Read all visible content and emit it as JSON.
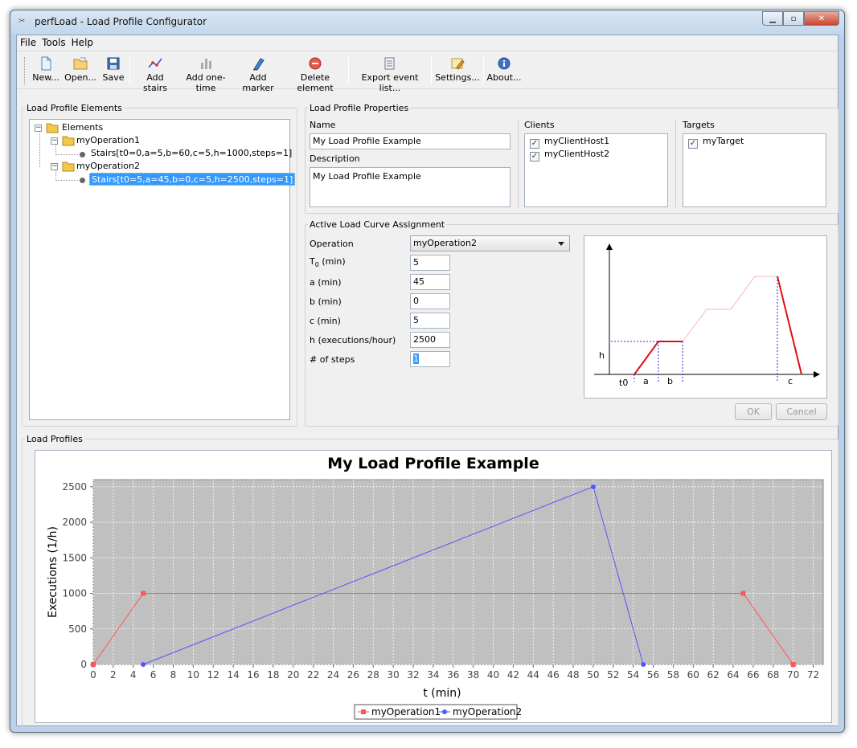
{
  "window": {
    "title": "perfLoad - Load Profile Configurator"
  },
  "menu": [
    "File",
    "Tools",
    "Help"
  ],
  "toolbar": {
    "new": "New...",
    "open": "Open...",
    "save": "Save",
    "add_stairs": "Add stairs",
    "add_one_time": "Add one-time",
    "add_marker": "Add marker",
    "delete_element": "Delete element",
    "export": "Export event list...",
    "settings": "Settings...",
    "about": "About..."
  },
  "elements_panel": {
    "title": "Load Profile Elements",
    "root": "Elements",
    "op1": "myOperation1",
    "op1_child": "Stairs[t0=0,a=5,b=60,c=5,h=1000,steps=1]",
    "op2": "myOperation2",
    "op2_child": "Stairs[t0=5,a=45,b=0,c=5,h=2500,steps=1]"
  },
  "properties": {
    "title": "Load Profile Properties",
    "name_label": "Name",
    "name_value": "My Load Profile Example",
    "description_label": "Description",
    "description_value": "My Load Profile Example",
    "clients_label": "Clients",
    "clients": [
      "myClientHost1",
      "myClientHost2"
    ],
    "targets_label": "Targets",
    "targets": [
      "myTarget"
    ]
  },
  "assignment": {
    "title": "Active Load Curve Assignment",
    "operation_label": "Operation",
    "operation_value": "myOperation2",
    "t0_label": "T",
    "t0_sub": "0",
    "t0_unit": " (min)",
    "t0_value": "5",
    "a_label": "a (min)",
    "a_value": "45",
    "b_label": "b (min)",
    "b_value": "0",
    "c_label": "c (min)",
    "c_value": "5",
    "h_label": "h (executions/hour)",
    "h_value": "2500",
    "steps_label": "# of steps",
    "steps_value": "1",
    "ok": "OK",
    "cancel": "Cancel",
    "diagram": {
      "h": "h",
      "t0": "t0",
      "a": "a",
      "b": "b",
      "c": "c"
    }
  },
  "profiles_panel": {
    "title": "Load Profiles"
  },
  "chart_data": {
    "type": "line",
    "title": "My Load Profile Example",
    "xlabel": "t (min)",
    "ylabel": "Executions (1/h)",
    "xlim": [
      0,
      73
    ],
    "ylim": [
      0,
      2600
    ],
    "xticks": [
      0,
      2,
      4,
      6,
      8,
      10,
      12,
      14,
      16,
      18,
      20,
      22,
      24,
      26,
      28,
      30,
      32,
      34,
      36,
      38,
      40,
      42,
      44,
      46,
      48,
      50,
      52,
      54,
      56,
      58,
      60,
      62,
      64,
      66,
      68,
      70,
      72
    ],
    "yticks": [
      0,
      500,
      1000,
      1500,
      2000,
      2500
    ],
    "grid": true,
    "legend": "bottom-center",
    "series": [
      {
        "name": "myOperation1",
        "color": "#ff5555",
        "marker": "square",
        "x": [
          0,
          5,
          65,
          70
        ],
        "y": [
          0,
          1000,
          1000,
          0
        ]
      },
      {
        "name": "myOperation2",
        "color": "#5555ff",
        "marker": "circle",
        "x": [
          5,
          50,
          55
        ],
        "y": [
          0,
          2500,
          0
        ]
      }
    ]
  }
}
